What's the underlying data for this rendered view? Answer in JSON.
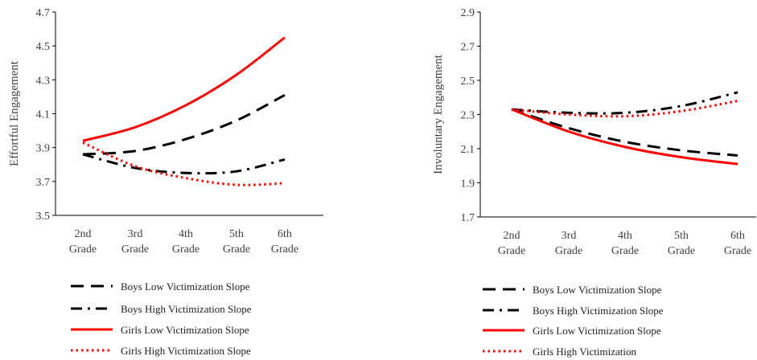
{
  "chart_data": [
    {
      "type": "line",
      "title": "",
      "ylabel": "Effortful Engagement",
      "xlabel": "",
      "ylim": [
        3.5,
        4.7
      ],
      "yticks": [
        "3.5",
        "3.7",
        "3.9",
        "4.1",
        "4.3",
        "4.5",
        "4.7"
      ],
      "categories": [
        [
          "2nd",
          "Grade"
        ],
        [
          "3rd",
          "Grade"
        ],
        [
          "4th",
          "Grade"
        ],
        [
          "5th",
          "Grade"
        ],
        [
          "6th",
          "Grade"
        ]
      ],
      "legend_position": "bottom",
      "grid": false,
      "series": [
        {
          "name": "Boys Low Victimization Slope",
          "style": "dash",
          "color": "#000000",
          "values": [
            3.86,
            3.88,
            3.95,
            4.06,
            4.21
          ]
        },
        {
          "name": "Boys High Victimization Slope",
          "style": "dashdot",
          "color": "#000000",
          "values": [
            3.86,
            3.78,
            3.75,
            3.76,
            3.83
          ]
        },
        {
          "name": "Girls Low Victimization Slope",
          "style": "solid",
          "color": "#ff0000",
          "values": [
            3.94,
            4.02,
            4.15,
            4.33,
            4.55
          ]
        },
        {
          "name": "Girls High Victimization Slope",
          "style": "dot",
          "color": "#ff0000",
          "values": [
            3.93,
            3.79,
            3.72,
            3.68,
            3.69
          ]
        }
      ]
    },
    {
      "type": "line",
      "title": "",
      "ylabel": "Involuntary Engagement",
      "xlabel": "",
      "ylim": [
        1.7,
        2.9
      ],
      "yticks": [
        "1.7",
        "1.9",
        "2.1",
        "2.3",
        "2.5",
        "2.7",
        "2.9"
      ],
      "categories": [
        [
          "2nd",
          "Grade"
        ],
        [
          "3rd",
          "Grade"
        ],
        [
          "4th",
          "Grade"
        ],
        [
          "5th",
          "Grade"
        ],
        [
          "6th",
          "Grade"
        ]
      ],
      "legend_position": "bottom",
      "grid": false,
      "series": [
        {
          "name": "Boys Low Victimization Slope",
          "style": "dash",
          "color": "#000000",
          "values": [
            2.33,
            2.22,
            2.14,
            2.09,
            2.06
          ]
        },
        {
          "name": "Boys High Victimization Slope",
          "style": "dashdot",
          "color": "#000000",
          "values": [
            2.33,
            2.31,
            2.31,
            2.35,
            2.43
          ]
        },
        {
          "name": "Girls Low Victimization Slope",
          "style": "solid",
          "color": "#ff0000",
          "values": [
            2.33,
            2.2,
            2.11,
            2.05,
            2.01
          ]
        },
        {
          "name": "Girls High Victimization",
          "style": "dot",
          "color": "#ff0000",
          "values": [
            2.33,
            2.3,
            2.29,
            2.32,
            2.38
          ]
        }
      ]
    }
  ]
}
